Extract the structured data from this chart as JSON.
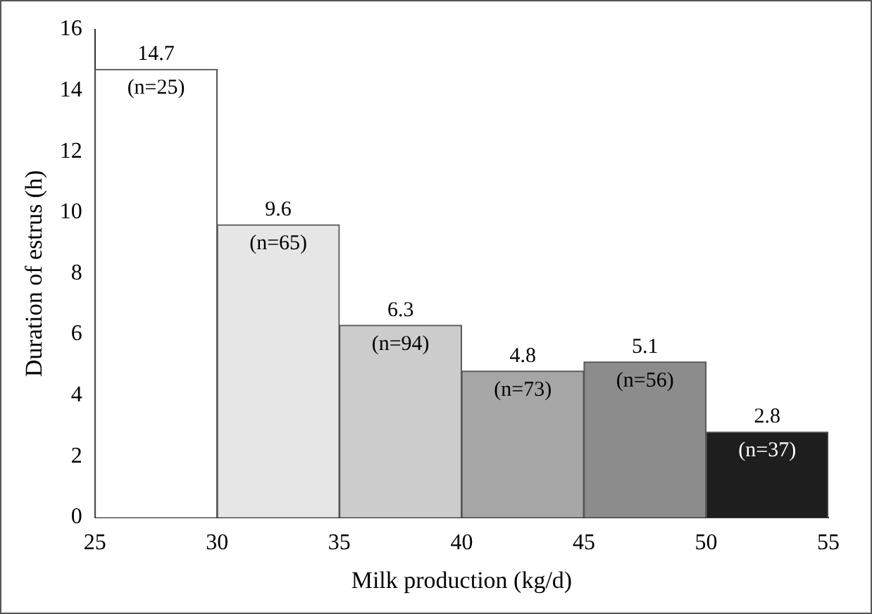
{
  "chart_data": {
    "type": "histogram",
    "xlabel": "Milk production (kg/d)",
    "ylabel": "Duration of estrus (h)",
    "bins": [
      25,
      30,
      35,
      40,
      45,
      50,
      55
    ],
    "values": [
      14.7,
      9.6,
      6.3,
      4.8,
      5.1,
      2.8
    ],
    "colors": [
      "#ffffff",
      "#e6e6e6",
      "#cccccc",
      "#a6a6a6",
      "#8c8c8c",
      "#1e1e1e"
    ],
    "xlim": [
      25,
      55
    ],
    "xticks": [
      25,
      30,
      35,
      40,
      45,
      50,
      55
    ],
    "ylim": [
      0,
      16
    ],
    "yticks": [
      0,
      2,
      4,
      6,
      8,
      10,
      12,
      14,
      16
    ],
    "grid": false,
    "legend": false,
    "data_labels": true,
    "annotations": [
      {
        "text": "(n=25)",
        "x": 27.5,
        "y": 14.7
      },
      {
        "text": "(n=65)",
        "x": 32.5,
        "y": 9.6
      },
      {
        "text": "(n=94)",
        "x": 37.5,
        "y": 6.3
      },
      {
        "text": "(n=73)",
        "x": 42.5,
        "y": 4.8
      },
      {
        "text": "(n=56)",
        "x": 47.5,
        "y": 5.1
      },
      {
        "text": "(n=37)",
        "x": 52.5,
        "y": 2.8
      }
    ]
  }
}
